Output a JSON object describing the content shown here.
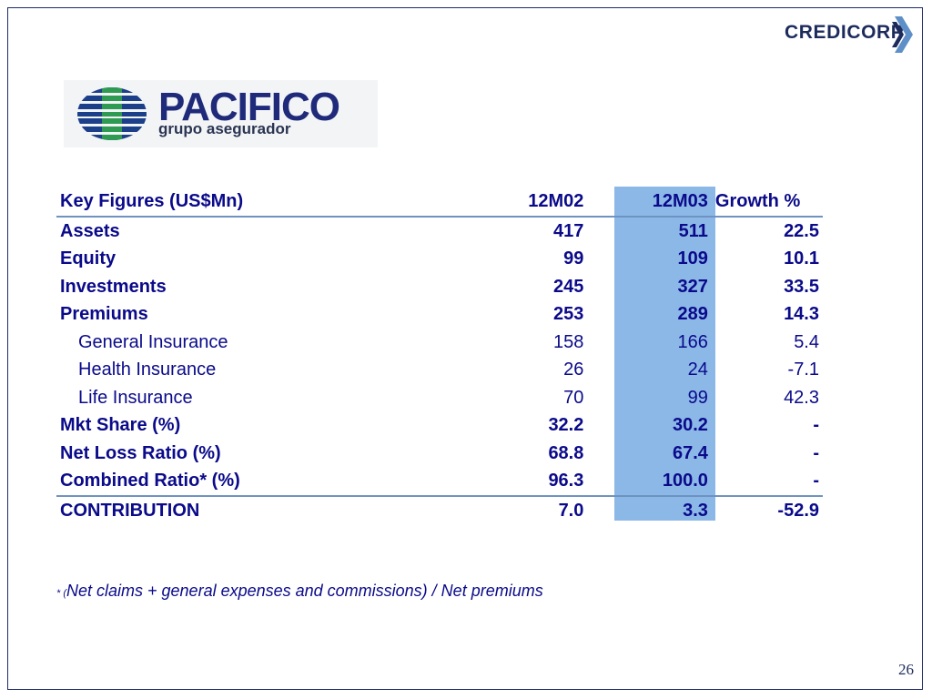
{
  "header": {
    "brand": "CREDICORP",
    "subsidiary_name": "PACIFICO",
    "subsidiary_tagline": "grupo asegurador"
  },
  "table": {
    "columns": [
      "Key Figures (US$Mn)",
      "12M02",
      "12M03",
      "Growth %"
    ],
    "rows": [
      {
        "label": "Assets",
        "v1": "417",
        "v2": "511",
        "growth": "22.5"
      },
      {
        "label": "Equity",
        "v1": "99",
        "v2": "109",
        "growth": "10.1"
      },
      {
        "label": "Investments",
        "v1": "245",
        "v2": "327",
        "growth": "33.5"
      },
      {
        "label": "Premiums",
        "v1": "253",
        "v2": "289",
        "growth": "14.3"
      },
      {
        "label": "General Insurance",
        "v1": "158",
        "v2": "166",
        "growth": "5.4"
      },
      {
        "label": "Health Insurance",
        "v1": "26",
        "v2": "24",
        "growth": "-7.1"
      },
      {
        "label": "Life Insurance",
        "v1": "70",
        "v2": "99",
        "growth": "42.3"
      },
      {
        "label": "Mkt Share (%)",
        "v1": "32.2",
        "v2": "30.2",
        "growth": "-"
      },
      {
        "label": "Net Loss Ratio (%)",
        "v1": "68.8",
        "v2": "67.4",
        "growth": "-"
      },
      {
        "label": "Combined Ratio* (%)",
        "v1": "96.3",
        "v2": "100.0",
        "growth": "-"
      },
      {
        "label": "CONTRIBUTION",
        "v1": "7.0",
        "v2": "3.3",
        "growth": "-52.9"
      }
    ]
  },
  "footnote": {
    "marker": "* (",
    "text": "Net claims + general expenses and commissions) / Net premiums"
  },
  "page_number": "26",
  "colors": {
    "text": "#0a0a8a",
    "highlight_column": "#8cb8e8",
    "rule": "#6f93c0",
    "brand_navy": "#1f2a7a"
  }
}
